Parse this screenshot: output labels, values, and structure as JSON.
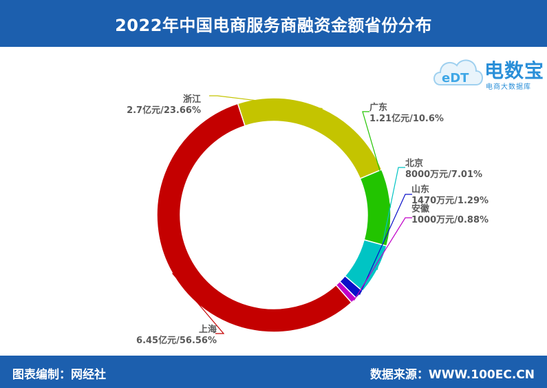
{
  "header": {
    "title": "2022年中国电商服务商融资金额省份分布"
  },
  "footer": {
    "left": "图表编制：网经社",
    "right": "数据来源：WWW.100EC.CN"
  },
  "logo": {
    "name": "电数宝",
    "sub": "电商大数据库",
    "mark": "eDT"
  },
  "chart_data": {
    "type": "pie",
    "donut": true,
    "categories": [
      "浙江",
      "广东",
      "北京",
      "山东",
      "安徽",
      "上海"
    ],
    "values": [
      23.66,
      10.6,
      7.01,
      1.29,
      0.88,
      56.56
    ],
    "amount_labels": [
      "2.7亿元/23.66%",
      "1.21亿元/10.6%",
      "8000万元/7.01%",
      "1470万元/1.29%",
      "1000万元/0.88%",
      "6.45亿元/56.56%"
    ],
    "colors": [
      "#c4c400",
      "#22c400",
      "#00c4c4",
      "#0a10c8",
      "#c000c8",
      "#c40000"
    ],
    "start_angle_deg": -18
  }
}
